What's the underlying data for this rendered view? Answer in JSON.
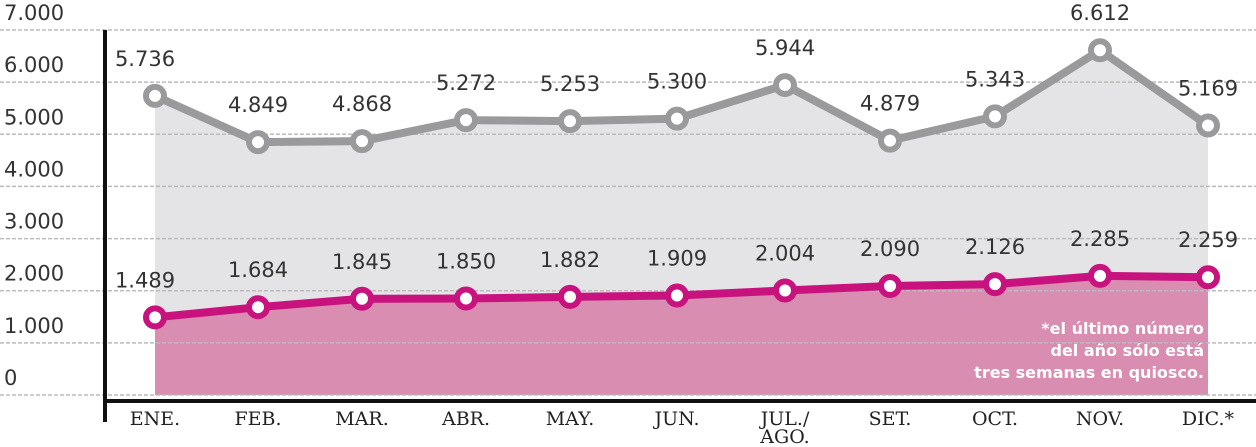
{
  "chart_data": {
    "type": "area",
    "categories": [
      "ENE.",
      "FEB.",
      "MAR.",
      "ABR.",
      "MAY.",
      "JUN.",
      "JUL./\nAGO.",
      "SET.",
      "OCT.",
      "NOV.",
      "DIC.*"
    ],
    "series": [
      {
        "color": "#9a9a9c",
        "area_color": "#e4e4e6",
        "values": [
          5736,
          4849,
          4868,
          5272,
          5253,
          5300,
          5944,
          4879,
          5343,
          6612,
          5169
        ],
        "value_labels": [
          "5.736",
          "4.849",
          "4.868",
          "5.272",
          "5.253",
          "5.300",
          "5.944",
          "4.879",
          "5.343",
          "6.612",
          "5.169"
        ]
      },
      {
        "color": "#c8137f",
        "area_color": "#d88db1",
        "values": [
          1489,
          1684,
          1845,
          1850,
          1882,
          1909,
          2004,
          2090,
          2126,
          2285,
          2259
        ],
        "value_labels": [
          "1.489",
          "1.684",
          "1.845",
          "1.850",
          "1.882",
          "1.909",
          "2.004",
          "2.090",
          "2.126",
          "2.285",
          "2.259"
        ]
      }
    ],
    "ylim": [
      0,
      7000
    ],
    "yticks": [
      0,
      {
        "value": 1000,
        "label": "1.000"
      },
      {
        "value": 2000,
        "label": "2.000"
      },
      {
        "value": 3000,
        "label": "3.000"
      },
      {
        "value": 4000,
        "label": "4.000"
      },
      {
        "value": 5000,
        "label": "5.000"
      },
      {
        "value": 6000,
        "label": "6.000"
      },
      {
        "value": 7000,
        "label": "7.000"
      }
    ],
    "grid": true,
    "annotation": "*el último número\ndel año sólo está\ntres semanas en quiosco."
  }
}
